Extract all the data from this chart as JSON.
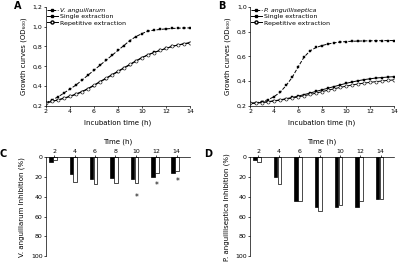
{
  "time_growth": [
    2,
    2.5,
    3,
    3.5,
    4,
    4.5,
    5,
    5.5,
    6,
    6.5,
    7,
    7.5,
    8,
    8.5,
    9,
    9.5,
    10,
    10.5,
    11,
    11.5,
    12,
    12.5,
    13,
    13.5,
    14
  ],
  "A_bacteria": [
    0.23,
    0.26,
    0.29,
    0.33,
    0.37,
    0.41,
    0.46,
    0.51,
    0.56,
    0.61,
    0.66,
    0.71,
    0.76,
    0.81,
    0.86,
    0.9,
    0.93,
    0.955,
    0.965,
    0.972,
    0.978,
    0.982,
    0.985,
    0.987,
    0.988
  ],
  "A_single": [
    0.23,
    0.245,
    0.26,
    0.275,
    0.295,
    0.315,
    0.34,
    0.37,
    0.405,
    0.44,
    0.475,
    0.51,
    0.545,
    0.58,
    0.615,
    0.65,
    0.685,
    0.715,
    0.74,
    0.76,
    0.78,
    0.8,
    0.815,
    0.825,
    0.835
  ],
  "A_repetitive": [
    0.23,
    0.245,
    0.26,
    0.278,
    0.298,
    0.32,
    0.345,
    0.375,
    0.41,
    0.445,
    0.48,
    0.515,
    0.55,
    0.585,
    0.62,
    0.655,
    0.688,
    0.715,
    0.738,
    0.76,
    0.78,
    0.8,
    0.815,
    0.828,
    0.84
  ],
  "B_bacteria": [
    0.22,
    0.225,
    0.235,
    0.25,
    0.275,
    0.31,
    0.365,
    0.43,
    0.515,
    0.595,
    0.645,
    0.672,
    0.688,
    0.7,
    0.71,
    0.716,
    0.72,
    0.722,
    0.724,
    0.725,
    0.726,
    0.727,
    0.727,
    0.728,
    0.728
  ],
  "B_single": [
    0.22,
    0.223,
    0.228,
    0.234,
    0.241,
    0.249,
    0.258,
    0.268,
    0.279,
    0.291,
    0.304,
    0.317,
    0.33,
    0.343,
    0.356,
    0.369,
    0.382,
    0.393,
    0.403,
    0.412,
    0.419,
    0.425,
    0.429,
    0.433,
    0.436
  ],
  "B_repetitive": [
    0.22,
    0.223,
    0.227,
    0.233,
    0.239,
    0.246,
    0.254,
    0.263,
    0.272,
    0.282,
    0.292,
    0.303,
    0.315,
    0.327,
    0.338,
    0.349,
    0.359,
    0.369,
    0.377,
    0.384,
    0.39,
    0.396,
    0.401,
    0.406,
    0.41
  ],
  "bar_times": [
    2,
    4,
    6,
    8,
    10,
    12,
    14
  ],
  "C_single": [
    -5,
    -17,
    -22,
    -21,
    -22,
    -20,
    -16
  ],
  "C_repetitive": [
    -3,
    -25,
    -27,
    -26,
    -26,
    -16,
    -14
  ],
  "D_single": [
    -3,
    -20,
    -44,
    -50,
    -50,
    -50,
    -42
  ],
  "D_repetitive": [
    -5,
    -27,
    -44,
    -54,
    -48,
    -44,
    -42
  ],
  "bar_color_single": "#000000",
  "bar_color_repetitive": "#ffffff",
  "bar_edge_color": "#000000",
  "bg_color": "#ffffff",
  "panel_A_ylabel": "Growth curves (OD₆₀₀)",
  "panel_B_ylabel": "Growth curves (OD₆₀₀)",
  "panel_C_ylabel": "V. anguillarum Inhibition (%)",
  "panel_D_ylabel": "P. anguilliseptica Inhibition (%)",
  "xlabel_growth": "Incubation time (h)",
  "xlabel_bar": "Time (h)",
  "legend_bacteria_A": "V. anguillarum",
  "legend_bacteria_B": "P. anguilliseptica",
  "legend_single": "Single extraction",
  "legend_repetitive": "Repetitive extraction",
  "ylim_A": [
    0.2,
    1.2
  ],
  "ylim_B": [
    0.2,
    1.0
  ],
  "yticks_A": [
    0.2,
    0.4,
    0.6,
    0.8,
    1.0,
    1.2
  ],
  "yticks_B": [
    0.2,
    0.4,
    0.6,
    0.8,
    1.0
  ],
  "yticks_CD": [
    0,
    20,
    40,
    60,
    80,
    100
  ],
  "star_C_times": [
    10,
    12,
    14
  ],
  "star_C_vals": [
    -34,
    -22,
    -18
  ],
  "fontsize_label": 5.0,
  "fontsize_tick": 4.5,
  "fontsize_legend": 4.5,
  "fontsize_panel": 7
}
